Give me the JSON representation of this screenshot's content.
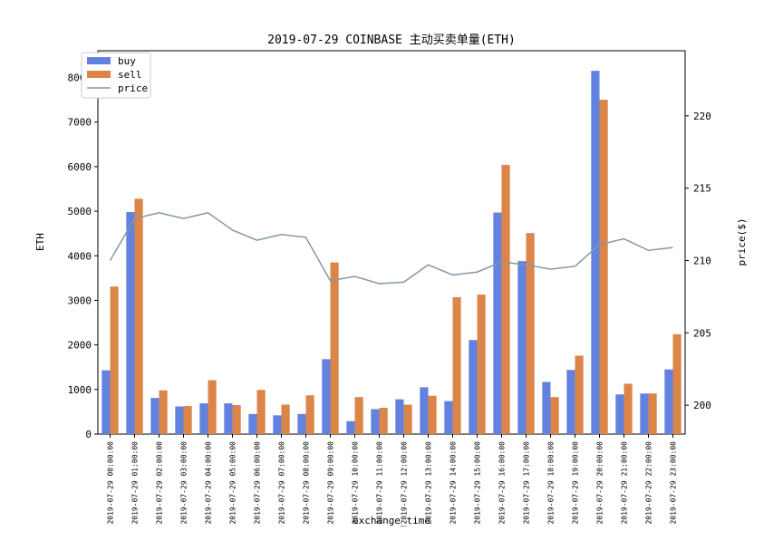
{
  "chart_data": {
    "type": "bar",
    "title": "2019-07-29 COINBASE 主动买卖单量(ETH)",
    "xlabel": "exchange_time",
    "ylabel": "ETH",
    "y2label": "price($)",
    "ylim": [
      0,
      8600
    ],
    "y2lim": [
      198,
      224.5
    ],
    "yticks": [
      0,
      1000,
      2000,
      3000,
      4000,
      5000,
      6000,
      7000,
      8000
    ],
    "y2ticks": [
      200,
      205,
      210,
      215,
      220
    ],
    "legend_position": "top-left",
    "categories": [
      "2019-07-29 00:00:00",
      "2019-07-29 01:00:00",
      "2019-07-29 02:00:00",
      "2019-07-29 03:00:00",
      "2019-07-29 04:00:00",
      "2019-07-29 05:00:00",
      "2019-07-29 06:00:00",
      "2019-07-29 07:00:00",
      "2019-07-29 08:00:00",
      "2019-07-29 09:00:00",
      "2019-07-29 10:00:00",
      "2019-07-29 11:00:00",
      "2019-07-29 12:00:00",
      "2019-07-29 13:00:00",
      "2019-07-29 14:00:00",
      "2019-07-29 15:00:00",
      "2019-07-29 16:00:00",
      "2019-07-29 17:00:00",
      "2019-07-29 18:00:00",
      "2019-07-29 19:00:00",
      "2019-07-29 20:00:00",
      "2019-07-29 21:00:00",
      "2019-07-29 22:00:00",
      "2019-07-29 23:00:00"
    ],
    "series": [
      {
        "name": "buy",
        "type": "bar",
        "axis": "left",
        "color": "#6382e0",
        "values": [
          1430,
          4980,
          810,
          620,
          690,
          690,
          450,
          420,
          450,
          1680,
          290,
          560,
          780,
          1050,
          740,
          2110,
          4970,
          3880,
          1170,
          1440,
          8150,
          890,
          910,
          1450
        ]
      },
      {
        "name": "sell",
        "type": "bar",
        "axis": "left",
        "color": "#dc8549",
        "values": [
          3310,
          5280,
          980,
          630,
          1210,
          650,
          990,
          660,
          870,
          3850,
          830,
          590,
          660,
          860,
          3070,
          3130,
          6040,
          4510,
          830,
          1760,
          7500,
          1130,
          910,
          2240
        ]
      },
      {
        "name": "price",
        "type": "line",
        "axis": "right",
        "color": "#8497a8",
        "values": [
          210.0,
          212.9,
          213.3,
          212.9,
          213.3,
          212.1,
          211.4,
          211.8,
          211.6,
          208.6,
          208.9,
          208.4,
          208.5,
          209.7,
          209.0,
          209.2,
          209.9,
          209.7,
          209.4,
          209.6,
          211.1,
          211.5,
          210.7,
          210.9
        ]
      }
    ]
  }
}
